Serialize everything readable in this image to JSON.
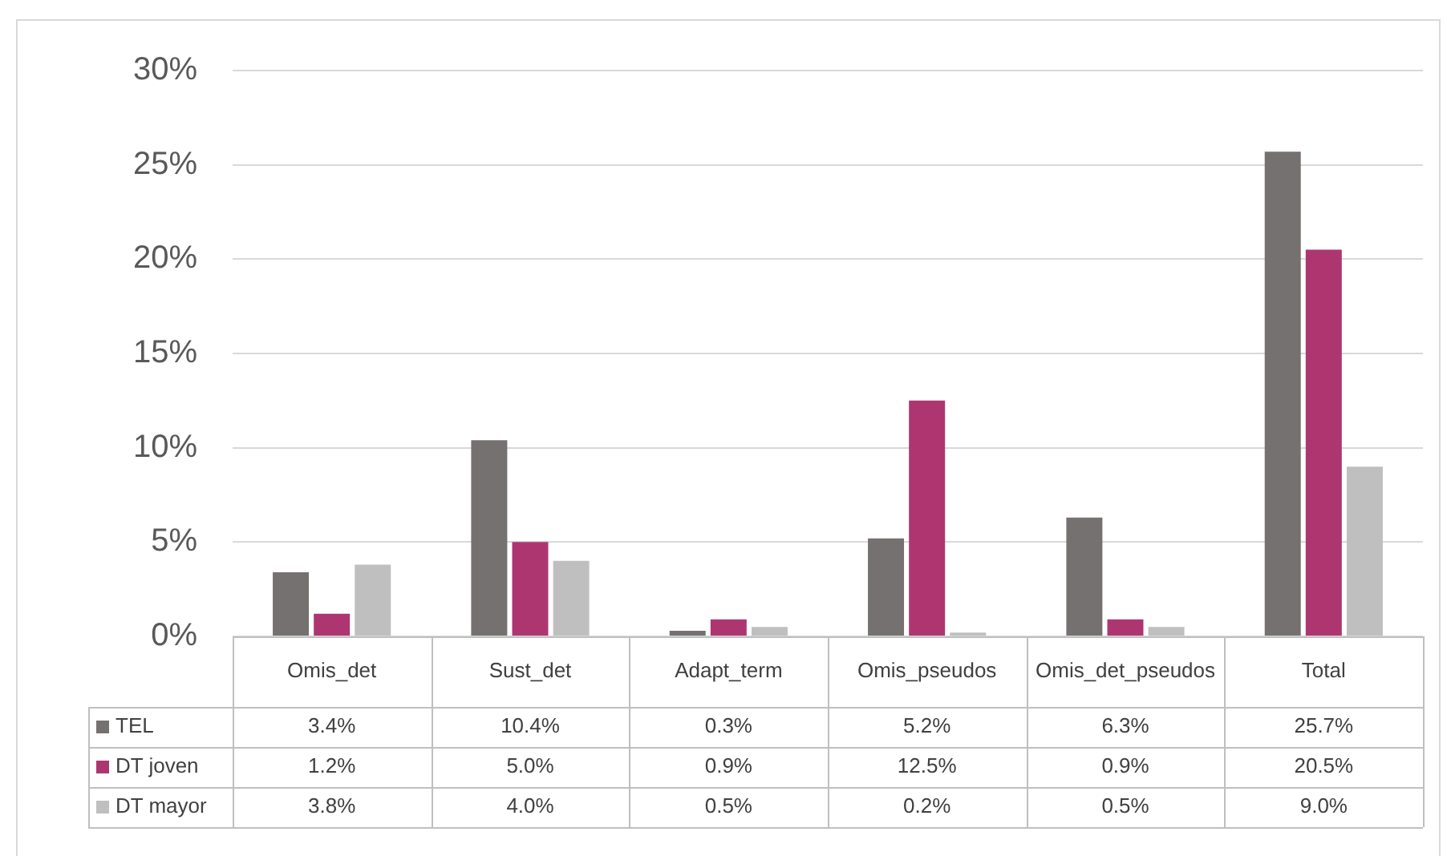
{
  "chart_data": {
    "type": "bar",
    "categories": [
      "Omis_det",
      "Sust_det",
      "Adapt_term",
      "Omis_pseudos",
      "Omis_det_pseudos",
      "Total"
    ],
    "series": [
      {
        "name": "TEL",
        "color": "#767171",
        "values": [
          3.4,
          10.4,
          0.3,
          5.2,
          6.3,
          25.7
        ],
        "value_labels": [
          "3.4%",
          "10.4%",
          "0.3%",
          "5.2%",
          "6.3%",
          "25.7%"
        ]
      },
      {
        "name": "DT joven",
        "color": "#ae3670",
        "values": [
          1.2,
          5.0,
          0.9,
          12.5,
          0.9,
          20.5
        ],
        "value_labels": [
          "1.2%",
          "5.0%",
          "0.9%",
          "12.5%",
          "0.9%",
          "20.5%"
        ]
      },
      {
        "name": "DT mayor",
        "color": "#bfbfbf",
        "values": [
          3.8,
          4.0,
          0.5,
          0.2,
          0.5,
          9.0
        ],
        "value_labels": [
          "3.8%",
          "4.0%",
          "0.5%",
          "0.2%",
          "0.5%",
          "9.0%"
        ]
      }
    ],
    "ylim": [
      0,
      30
    ],
    "yticks": [
      {
        "value": 0,
        "label": "0%"
      },
      {
        "value": 5,
        "label": "5%"
      },
      {
        "value": 10,
        "label": "10%"
      },
      {
        "value": 15,
        "label": "15%"
      },
      {
        "value": 20,
        "label": "20%"
      },
      {
        "value": 25,
        "label": "25%"
      },
      {
        "value": 30,
        "label": "30%"
      }
    ],
    "grid": "y",
    "legend": "bottom"
  }
}
